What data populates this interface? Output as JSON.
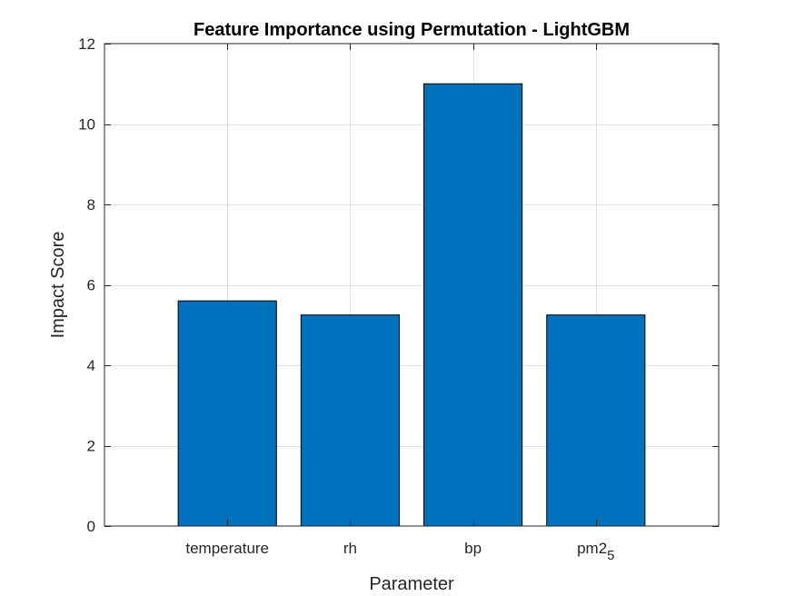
{
  "chart_data": {
    "type": "bar",
    "title": "Feature Importance using Permutation - LightGBM",
    "xlabel": "Parameter",
    "ylabel": "Impact Score",
    "categories": [
      "temperature",
      "rh",
      "bp",
      "pm2_5"
    ],
    "category_display": [
      {
        "base": "temperature",
        "subscript": ""
      },
      {
        "base": "rh",
        "subscript": ""
      },
      {
        "base": "bp",
        "subscript": ""
      },
      {
        "base": "pm2",
        "subscript": "5"
      }
    ],
    "values": [
      5.6,
      5.25,
      11.0,
      5.25
    ],
    "ylim": [
      0,
      12
    ],
    "yticks": [
      0,
      2,
      4,
      6,
      8,
      10,
      12
    ],
    "xlim": [
      0.5,
      5.5
    ],
    "x_positions": [
      1.5,
      2.5,
      3.5,
      4.5
    ],
    "grid": true,
    "box": true,
    "legend": "none",
    "bar_color": "#0072BD",
    "bar_edge_color": "#000000",
    "axis_color": "#262626",
    "grid_color": "#dfdfdf"
  }
}
